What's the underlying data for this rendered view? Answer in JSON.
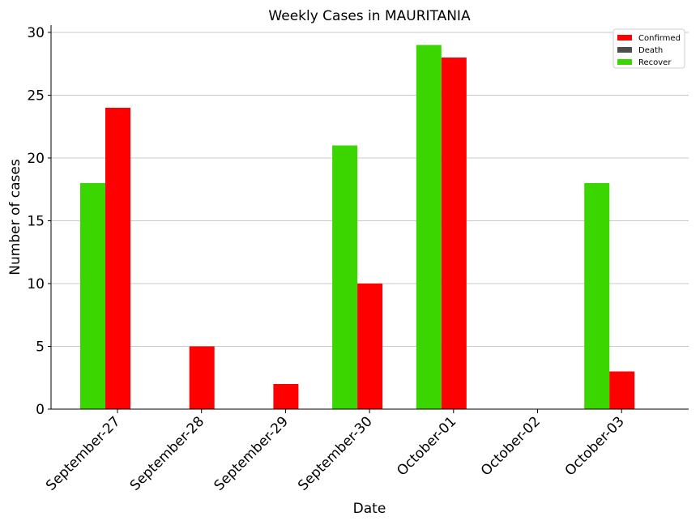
{
  "chart_data": {
    "type": "bar",
    "title": "Weekly Cases in MAURITANIA",
    "xlabel": "Date",
    "ylabel": "Number of cases",
    "categories": [
      "September-27",
      "September-28",
      "September-29",
      "September-30",
      "October-01",
      "October-02",
      "October-03"
    ],
    "series": [
      {
        "name": "Confirmed",
        "color": "#ff0000",
        "values": [
          24,
          5,
          2,
          10,
          28,
          0,
          3
        ]
      },
      {
        "name": "Death",
        "color": "#4d4d4d",
        "values": [
          0,
          0,
          0,
          0,
          0,
          0,
          0
        ]
      },
      {
        "name": "Recover",
        "color": "#3bd600",
        "values": [
          18,
          0,
          0,
          21,
          29,
          0,
          18
        ]
      }
    ],
    "ylim": [
      0,
      30
    ],
    "yticks": [
      0,
      5,
      10,
      15,
      20,
      25,
      30
    ],
    "grid": "horizontal",
    "legend_position": "top-right"
  }
}
